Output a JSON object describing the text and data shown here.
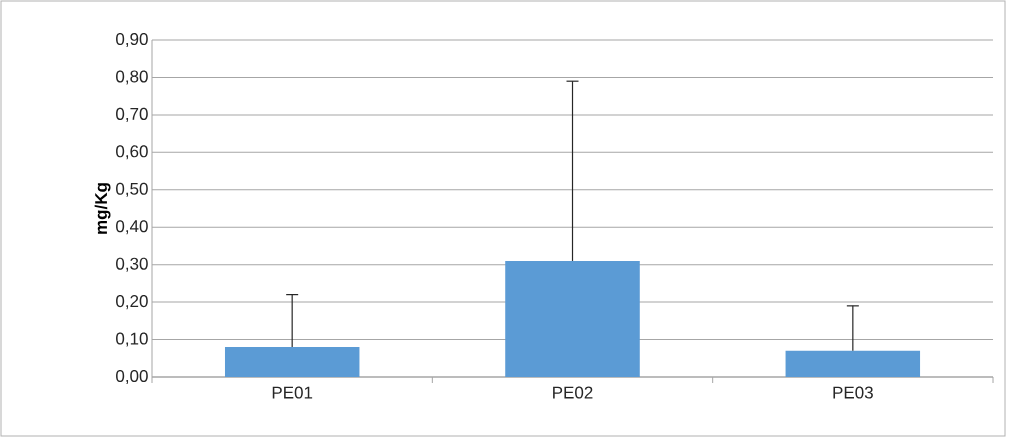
{
  "chart_data": {
    "type": "bar",
    "ylabel": "mg/Kg",
    "categories": [
      "PE01",
      "PE02",
      "PE03"
    ],
    "values": [
      0.08,
      0.31,
      0.07
    ],
    "errors": [
      [
        0.08,
        0.22
      ],
      [
        0.31,
        0.79
      ],
      [
        0.07,
        0.19
      ]
    ],
    "color": "#5b9bd5",
    "ylim": [
      0,
      0.9
    ],
    "yticks": [
      {
        "value": 0,
        "label": "0,00"
      },
      {
        "value": 0.1,
        "label": "0,10"
      },
      {
        "value": 0.2,
        "label": "0,20"
      },
      {
        "value": 0.3,
        "label": "0,30"
      },
      {
        "value": 0.4,
        "label": "0,40"
      },
      {
        "value": 0.5,
        "label": "0,50"
      },
      {
        "value": 0.6,
        "label": "0,60"
      },
      {
        "value": 0.7,
        "label": "0,70"
      },
      {
        "value": 0.8,
        "label": "0,80"
      },
      {
        "value": 0.9,
        "label": "0,90"
      }
    ],
    "grid": "y"
  }
}
